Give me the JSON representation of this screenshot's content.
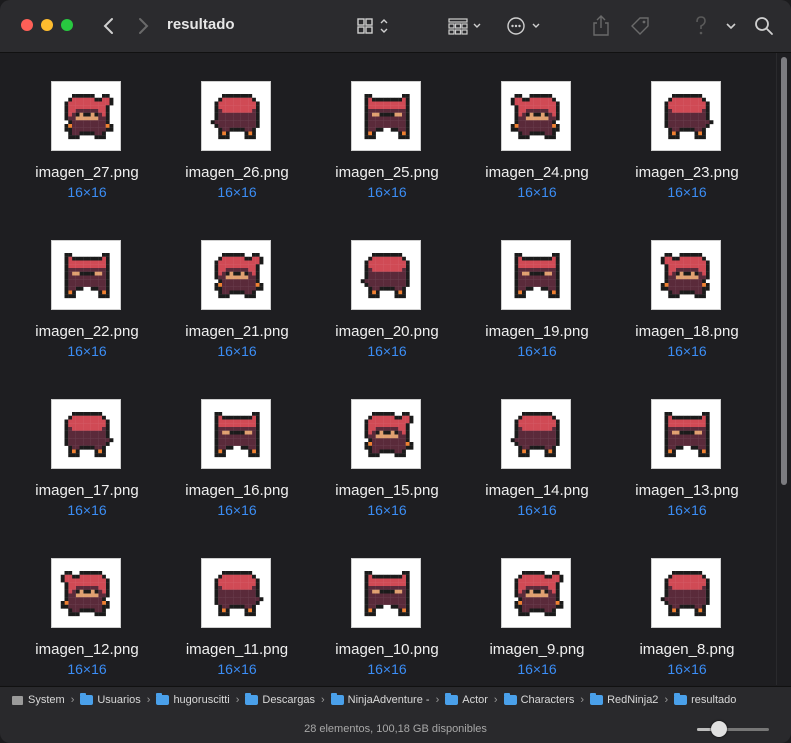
{
  "window": {
    "title": "resultado"
  },
  "toolbar": {
    "icons": [
      "back-chevron-icon",
      "forward-chevron-icon",
      "grid-view-icon",
      "group-icon",
      "action-icon",
      "share-icon",
      "tag-icon",
      "help-icon",
      "search-icon"
    ]
  },
  "files": [
    {
      "name": "imagen_27.png",
      "size": "16×16"
    },
    {
      "name": "imagen_26.png",
      "size": "16×16"
    },
    {
      "name": "imagen_25.png",
      "size": "16×16"
    },
    {
      "name": "imagen_24.png",
      "size": "16×16"
    },
    {
      "name": "imagen_23.png",
      "size": "16×16"
    },
    {
      "name": "imagen_22.png",
      "size": "16×16"
    },
    {
      "name": "imagen_21.png",
      "size": "16×16"
    },
    {
      "name": "imagen_20.png",
      "size": "16×16"
    },
    {
      "name": "imagen_19.png",
      "size": "16×16"
    },
    {
      "name": "imagen_18.png",
      "size": "16×16"
    },
    {
      "name": "imagen_17.png",
      "size": "16×16"
    },
    {
      "name": "imagen_16.png",
      "size": "16×16"
    },
    {
      "name": "imagen_15.png",
      "size": "16×16"
    },
    {
      "name": "imagen_14.png",
      "size": "16×16"
    },
    {
      "name": "imagen_13.png",
      "size": "16×16"
    },
    {
      "name": "imagen_12.png",
      "size": "16×16"
    },
    {
      "name": "imagen_11.png",
      "size": "16×16"
    },
    {
      "name": "imagen_10.png",
      "size": "16×16"
    },
    {
      "name": "imagen_9.png",
      "size": "16×16"
    },
    {
      "name": "imagen_8.png",
      "size": "16×16"
    }
  ],
  "pathbar": {
    "items": [
      "System",
      "Usuarios",
      "hugoruscitti",
      "Descargas",
      "NinjaAdventure -",
      "Actor",
      "Characters",
      "RedNinja2",
      "resultado"
    ]
  },
  "status": {
    "text": "28 elementos, 100,18 GB disponibles",
    "zoom_level": 0.3
  },
  "colors": {
    "accent": "#3b8df5",
    "ninja_red": "#d04a55",
    "ninja_dark": "#5a2a3a"
  }
}
